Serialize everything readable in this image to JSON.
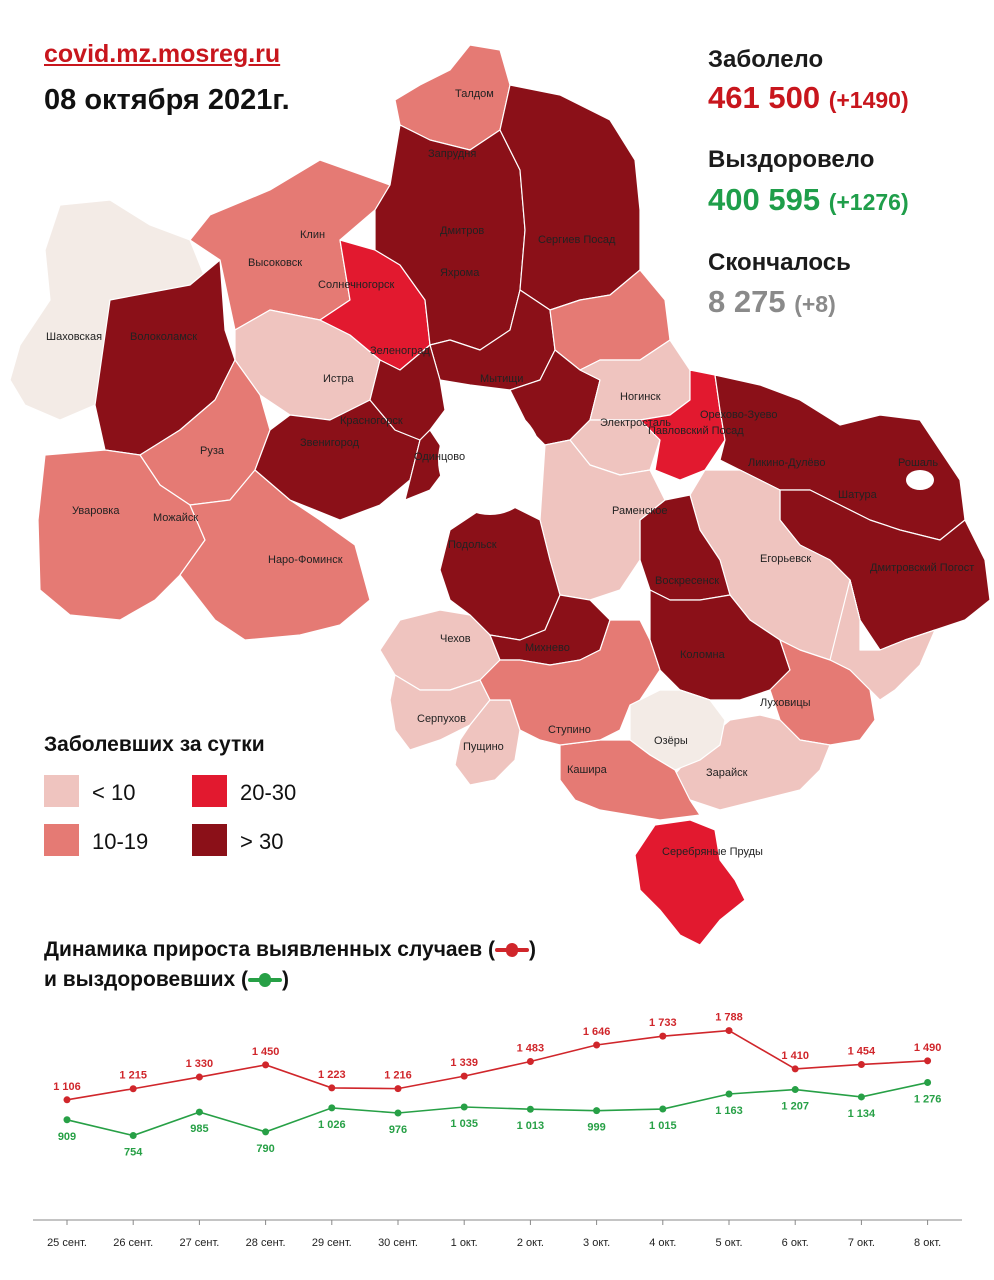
{
  "header": {
    "source": "covid.mz.mosreg.ru",
    "date": "08 октября 2021г."
  },
  "stats": {
    "cases": {
      "label": "Заболело",
      "value": "461 500",
      "delta": "(+1490)",
      "color": "#c8161d"
    },
    "recovered": {
      "label": "Выздоровело",
      "value": "400 595",
      "delta": "(+1276)",
      "color": "#1f9e4a"
    },
    "deaths": {
      "label": "Скончалось",
      "value": "8 275",
      "delta": "(+8)",
      "color": "#8a8a8a"
    }
  },
  "legend": {
    "title": "Заболевших за сутки",
    "items": [
      {
        "label": "< 10",
        "color": "#efc4bf"
      },
      {
        "label": "10-19",
        "color": "#e57a74"
      },
      {
        "label": "20-30",
        "color": "#e2192f"
      },
      {
        "label": "> 30",
        "color": "#8b1018"
      }
    ]
  },
  "map_labels": [
    "Талдом",
    "Запрудня",
    "Дмитров",
    "Сергиев Посад",
    "Клин",
    "Высоковск",
    "Яхрома",
    "Солнечногорск",
    "Волоколамск",
    "Шаховская",
    "Зеленоград",
    "Истра",
    "Мытищи",
    "Ногинск",
    "Электросталь",
    "Орехово-Зуево",
    "Павловский Посад",
    "Красногорск",
    "Звенигород",
    "Одинцово",
    "Руза",
    "Ликино-Дулёво",
    "Рошаль",
    "Шатура",
    "Уваровка",
    "Можайск",
    "Раменское",
    "Наро-Фоминск",
    "Подольск",
    "Егорьевск",
    "Дмитровский Погост",
    "Воскресенск",
    "Чехов",
    "Михнево",
    "Коломна",
    "Серпухов",
    "Пущино",
    "Ступино",
    "Луховицы",
    "Озёры",
    "Кашира",
    "Зарайск",
    "Серебряные Пруды"
  ],
  "chart": {
    "title_line1": "Динамика прироста выявленных случаев (",
    "title_line1_end": ")",
    "title_line2": "и выздоровевших (",
    "title_line2_end": ")",
    "marker_icons": [
      "red-line-marker-icon",
      "green-line-marker-icon"
    ]
  },
  "chart_data": {
    "type": "line",
    "categories": [
      "25 сент.",
      "26 сент.",
      "27 сент.",
      "28 сент.",
      "29 сент.",
      "30 сент.",
      "1 окт.",
      "2 окт.",
      "3 окт.",
      "4 окт.",
      "5 окт.",
      "6 окт.",
      "7 окт.",
      "8 окт."
    ],
    "series": [
      {
        "name": "выявленных случаев",
        "color": "#d0262b",
        "values": [
          1106,
          1215,
          1330,
          1450,
          1223,
          1216,
          1339,
          1483,
          1646,
          1733,
          1788,
          1410,
          1454,
          1490
        ],
        "labels": [
          "1 106",
          "1 215",
          "1 330",
          "1 450",
          "1 223",
          "1 216",
          "1 339",
          "1 483",
          "1 646",
          "1 733",
          "1 788",
          "1 410",
          "1 454",
          "1 490"
        ]
      },
      {
        "name": "выздоровевших",
        "color": "#27a046",
        "values": [
          909,
          754,
          985,
          790,
          1026,
          976,
          1035,
          1013,
          999,
          1015,
          1163,
          1207,
          1134,
          1276
        ],
        "labels": [
          "909",
          "754",
          "985",
          "790",
          "1 026",
          "976",
          "1 035",
          "1 013",
          "999",
          "1 015",
          "1 163",
          "1 207",
          "1 134",
          "1 276"
        ]
      }
    ],
    "grid": false
  }
}
